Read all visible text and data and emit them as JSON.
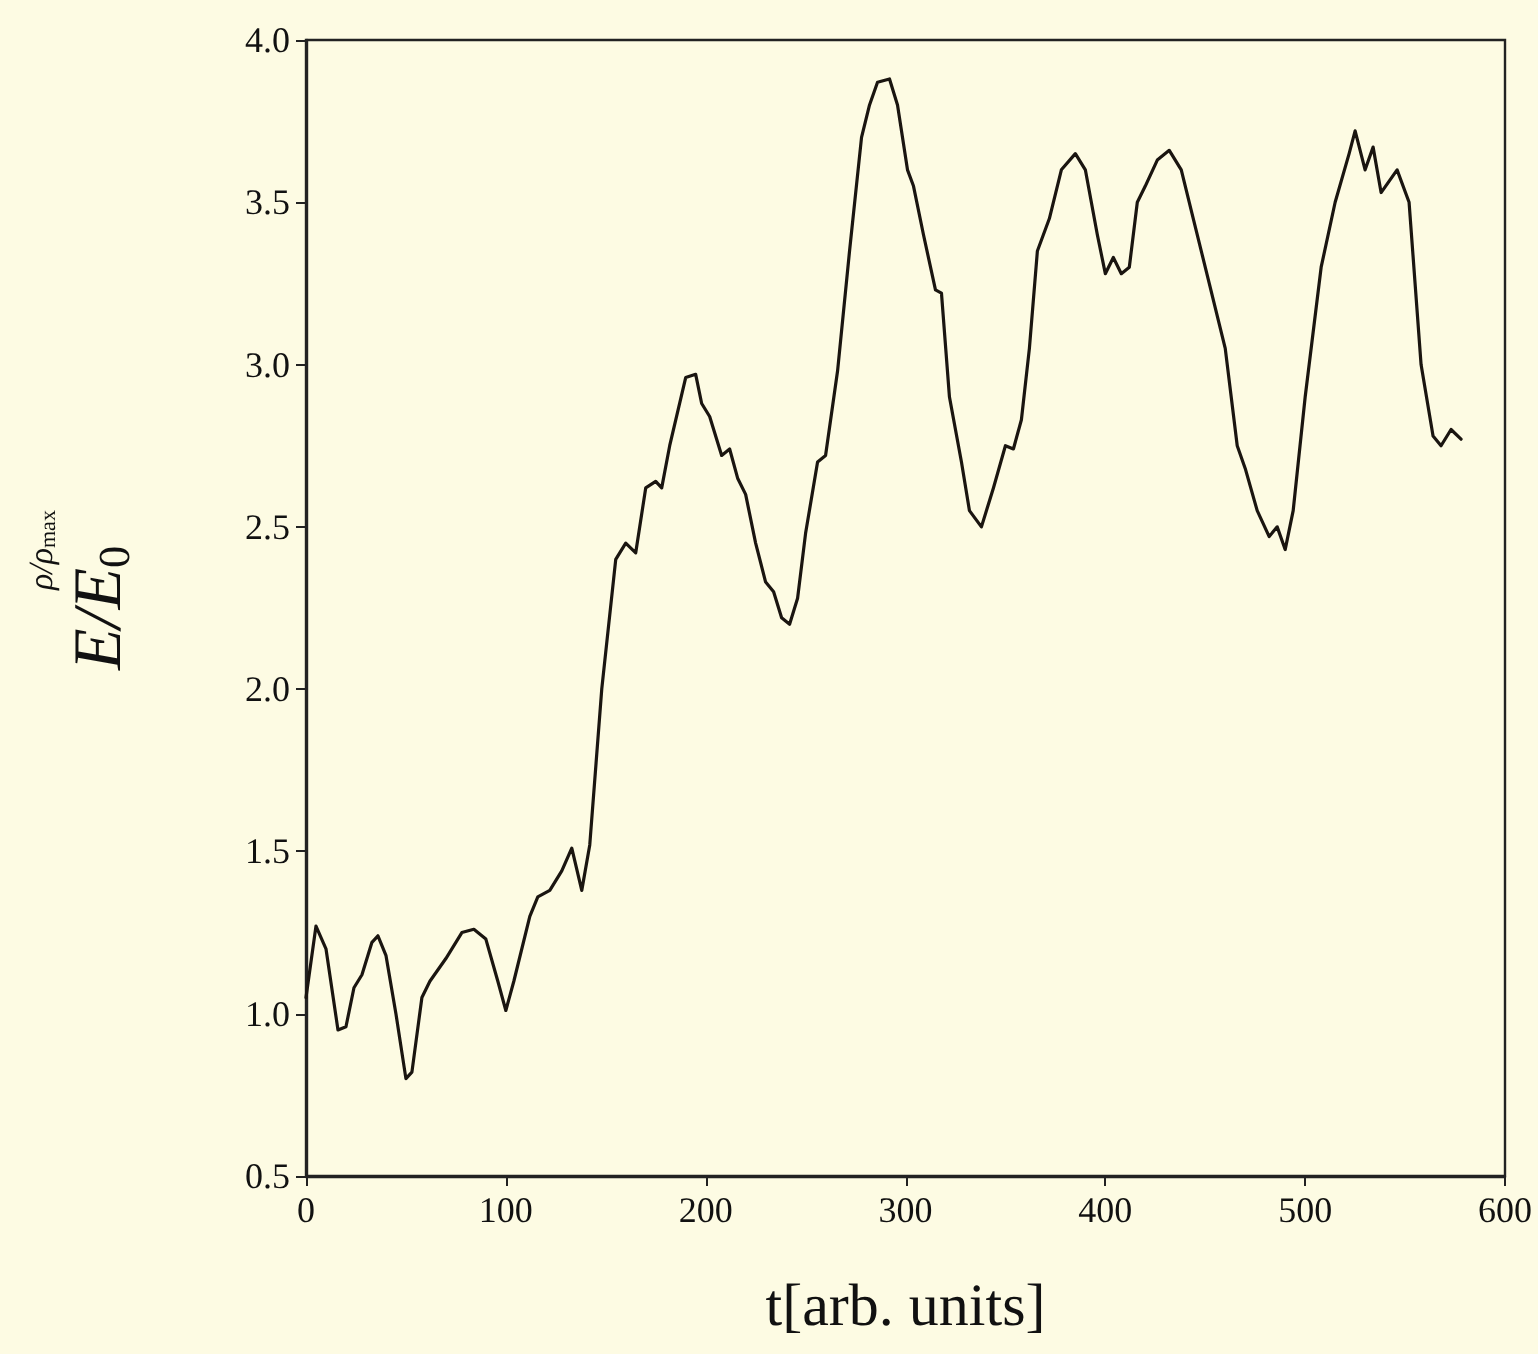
{
  "chart_data": {
    "type": "line",
    "xlabel": "t[arb. units]",
    "ylabel": "E/E$_{0}$",
    "annotations": [
      "ρ/ρ$_{max}$"
    ],
    "x": [
      0,
      5,
      10,
      16,
      20,
      24,
      28,
      33,
      36,
      40,
      45,
      50,
      53,
      58,
      62,
      70,
      78,
      84,
      90,
      96,
      100,
      104,
      112,
      116,
      122,
      128,
      133,
      138,
      142,
      148,
      155,
      160,
      165,
      170,
      175,
      178,
      182,
      190,
      195,
      198,
      202,
      208,
      212,
      216,
      220,
      225,
      230,
      234,
      238,
      242,
      246,
      250,
      256,
      260,
      266,
      272,
      278,
      282,
      286,
      292,
      296,
      301,
      304,
      309,
      315,
      318,
      322,
      328,
      332,
      338,
      344,
      350,
      354,
      358,
      362,
      366,
      372,
      378,
      385,
      390,
      396,
      400,
      404,
      408,
      412,
      416,
      420,
      426,
      432,
      438,
      444,
      452,
      460,
      466,
      470,
      476,
      482,
      486,
      490,
      494,
      500,
      508,
      515,
      522,
      525,
      530,
      534,
      538,
      546,
      552,
      558,
      564,
      568,
      573,
      578
    ],
    "series": [
      {
        "color": "#1a1510",
        "values": [
          1.05,
          1.27,
          1.2,
          0.95,
          0.96,
          1.08,
          1.12,
          1.22,
          1.24,
          1.18,
          1.0,
          0.8,
          0.82,
          1.05,
          1.1,
          1.17,
          1.25,
          1.26,
          1.23,
          1.1,
          1.01,
          1.1,
          1.3,
          1.36,
          1.38,
          1.44,
          1.51,
          1.38,
          1.52,
          2.0,
          2.4,
          2.45,
          2.42,
          2.62,
          2.64,
          2.62,
          2.75,
          2.96,
          2.97,
          2.88,
          2.84,
          2.72,
          2.74,
          2.65,
          2.6,
          2.45,
          2.33,
          2.3,
          2.22,
          2.2,
          2.28,
          2.48,
          2.7,
          2.72,
          2.98,
          3.35,
          3.7,
          3.8,
          3.87,
          3.88,
          3.8,
          3.6,
          3.55,
          3.4,
          3.23,
          3.22,
          2.9,
          2.7,
          2.55,
          2.5,
          2.62,
          2.75,
          2.74,
          2.83,
          3.05,
          3.35,
          3.45,
          3.6,
          3.65,
          3.6,
          3.4,
          3.28,
          3.33,
          3.28,
          3.3,
          3.5,
          3.55,
          3.63,
          3.66,
          3.6,
          3.45,
          3.25,
          3.05,
          2.75,
          2.68,
          2.55,
          2.47,
          2.5,
          2.43,
          2.55,
          2.9,
          3.3,
          3.5,
          3.65,
          3.72,
          3.6,
          3.67,
          3.53,
          3.6,
          3.5,
          3.0,
          2.78,
          2.75,
          2.8,
          2.77
        ]
      }
    ],
    "xlim": [
      0,
      600
    ],
    "xticks": [
      0,
      100,
      200,
      300,
      400,
      500,
      600
    ],
    "ylim": [
      0.5,
      4.0
    ],
    "yticks": [
      0.5,
      {
        "value": 1,
        "label": "1.0"
      },
      1.5,
      {
        "value": 2,
        "label": "2.0"
      },
      2.5,
      {
        "value": 3,
        "label": "3.0"
      },
      3.5,
      {
        "value": 4,
        "label": "4.0"
      }
    ],
    "grid": false,
    "marker": "none",
    "line_style": "solid"
  }
}
